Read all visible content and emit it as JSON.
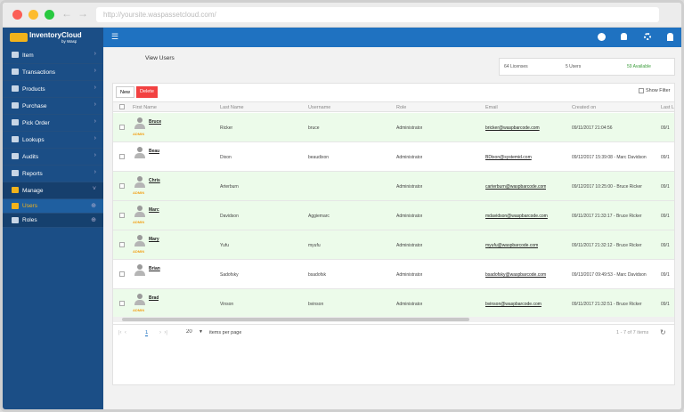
{
  "browser": {
    "url": "http://yoursite.waspassetcloud.com/"
  },
  "app": {
    "logo": "InventoryCloud",
    "logo_sub": "by Wasp"
  },
  "sidebar": {
    "items": [
      "Item",
      "Transactions",
      "Products",
      "Purchase",
      "Pick Order",
      "Lookups",
      "Audits",
      "Reports",
      "Manage"
    ],
    "subitems": [
      "Users",
      "Roles"
    ]
  },
  "page": {
    "title": "View Users"
  },
  "stats": [
    "64 Licenses",
    "5 Users",
    "59 Available"
  ],
  "toolbar": {
    "new": "New",
    "delete": "Delete",
    "show_filter": "Show Filter"
  },
  "table": {
    "columns": [
      "First Name",
      "Last Name",
      "Username",
      "Role",
      "Email",
      "Created on",
      "Last L"
    ],
    "badge": "ADMIN",
    "rows": [
      {
        "cells": [
          "Bruce",
          "Ricker",
          "bruce",
          "Administrator",
          "bricker@waspbarcode.com",
          "09/11/2017 21:04:56",
          "09/1"
        ],
        "admin": true
      },
      {
        "cells": [
          "Beau",
          "Dixon",
          "beaudixon",
          "Administrator",
          "BDixon@systemid.com",
          "09/12/2017 15:39:08 - Marc Davidson",
          "09/1"
        ],
        "admin": false
      },
      {
        "cells": [
          "Chris",
          "Arterburn",
          "",
          "Administrator",
          "carterburn@waspbarcode.com",
          "09/12/2017 10:25:00 - Bruce Ricker",
          "09/1"
        ],
        "admin": true
      },
      {
        "cells": [
          "Marc",
          "Davidson",
          "Aggiemarc",
          "Administrator",
          "mdavidson@waspbarcode.com",
          "09/11/2017 21:33:17 - Bruce Ricker",
          "09/1"
        ],
        "admin": true
      },
      {
        "cells": [
          "Mary",
          "Yufu",
          "myufu",
          "Administrator",
          "myufu@waspbarcode.com",
          "09/11/2017 21:32:12 - Bruce Ricker",
          "09/1"
        ],
        "admin": true
      },
      {
        "cells": [
          "Brian",
          "Sadofsky",
          "bsadofsk",
          "Administrator",
          "bsadofsky@waspbarcode.com",
          "09/13/2017 09:49:53 - Marc Davidson",
          "09/1"
        ],
        "admin": false
      },
      {
        "cells": [
          "Brad",
          "Vinson",
          "bvinson",
          "Administrator",
          "bvinson@waspbarcode.com",
          "09/11/2017 21:32:51 - Bruce Ricker",
          "09/1"
        ],
        "admin": true
      }
    ]
  },
  "pager": {
    "page": "1",
    "size": "20",
    "per_page": "items per page",
    "summary": "1 - 7 of 7 items"
  }
}
